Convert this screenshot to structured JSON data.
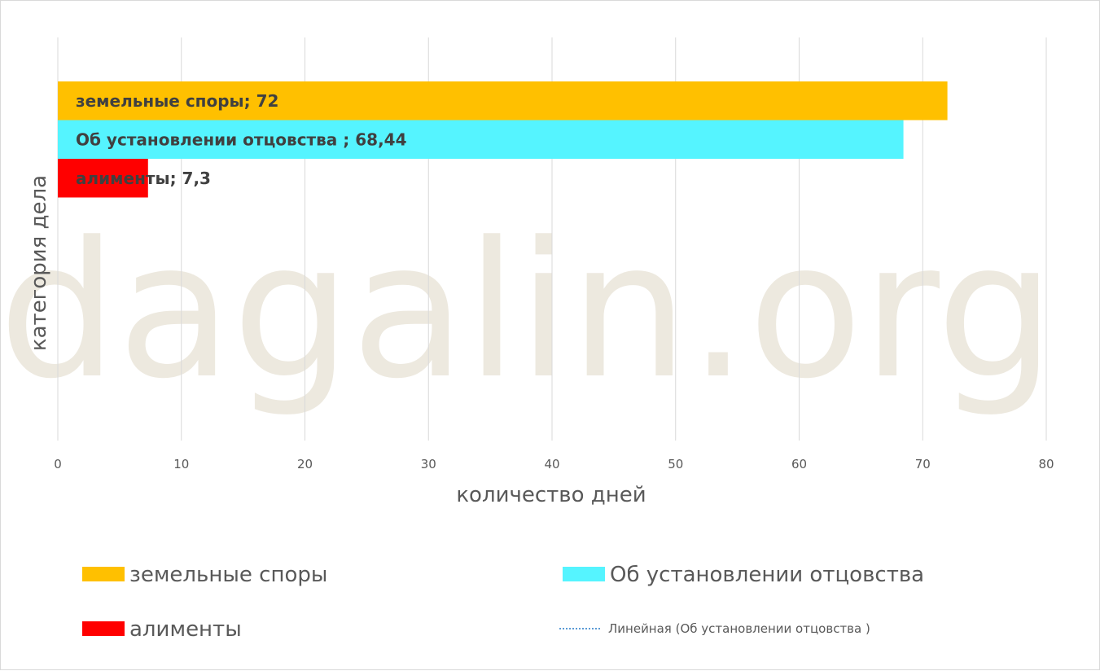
{
  "chart_data": {
    "type": "bar",
    "orientation": "horizontal",
    "watermark": "dagalin.org",
    "xlabel": "количество дней",
    "ylabel": "категория дела",
    "xlim": [
      0,
      80
    ],
    "x_ticks": [
      0,
      10,
      20,
      30,
      40,
      50,
      60,
      70,
      80
    ],
    "grid": true,
    "legend_position": "bottom",
    "series": [
      {
        "name": "земельные споры",
        "value": 72,
        "value_label": "72",
        "color": "#FFC000"
      },
      {
        "name": "Об установлении отцовства ",
        "value": 68.44,
        "value_label": "68,44",
        "color": "#55F4FF"
      },
      {
        "name": "алименты",
        "value": 7.3,
        "value_label": "7,3",
        "color": "#FF0000"
      }
    ],
    "legend": [
      {
        "label": "земельные споры",
        "color": "#FFC000",
        "kind": "box"
      },
      {
        "label": "Об установлении отцовства",
        "color": "#55F4FF",
        "kind": "box"
      },
      {
        "label": "алименты",
        "color": "#FF0000",
        "kind": "box"
      },
      {
        "label": "Линейная (Об установлении отцовства )",
        "color": "#5B9BD5",
        "kind": "dotted-line"
      }
    ]
  }
}
